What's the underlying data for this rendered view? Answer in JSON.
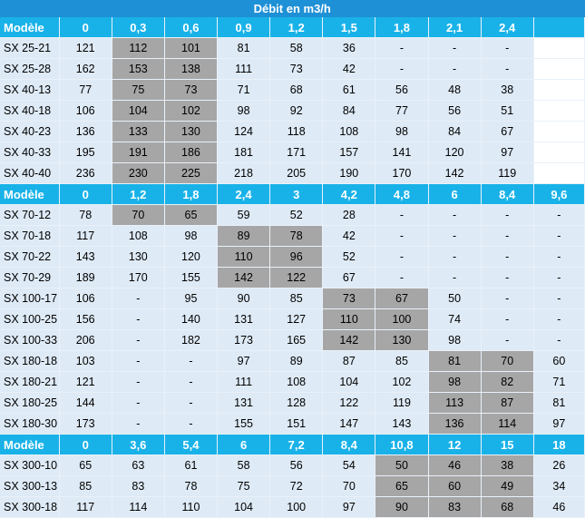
{
  "title": "Débit en m3/h",
  "sections": [
    {
      "header": [
        "Modèle",
        "0",
        "0,3",
        "0,6",
        "0,9",
        "1,2",
        "1,5",
        "1,8",
        "2,1",
        "2,4",
        ""
      ],
      "rows": [
        {
          "cells": [
            "SX 25-21",
            "121",
            "112",
            "101",
            "81",
            "58",
            "36",
            "-",
            "-",
            "-",
            ""
          ],
          "gray": [
            2,
            3
          ],
          "blank": [
            10
          ]
        },
        {
          "cells": [
            "SX 25-28",
            "162",
            "153",
            "138",
            "111",
            "73",
            "42",
            "-",
            "-",
            "-",
            ""
          ],
          "gray": [
            2,
            3
          ],
          "blank": [
            10
          ]
        },
        {
          "cells": [
            "SX 40-13",
            "77",
            "75",
            "73",
            "71",
            "68",
            "61",
            "56",
            "48",
            "38",
            ""
          ],
          "gray": [
            2,
            3
          ],
          "blank": [
            10
          ]
        },
        {
          "cells": [
            "SX 40-18",
            "106",
            "104",
            "102",
            "98",
            "92",
            "84",
            "77",
            "56",
            "51",
            ""
          ],
          "gray": [
            2,
            3
          ],
          "blank": [
            10
          ]
        },
        {
          "cells": [
            "SX 40-23",
            "136",
            "133",
            "130",
            "124",
            "118",
            "108",
            "98",
            "84",
            "67",
            ""
          ],
          "gray": [
            2,
            3
          ],
          "blank": [
            10
          ]
        },
        {
          "cells": [
            "SX 40-33",
            "195",
            "191",
            "186",
            "181",
            "171",
            "157",
            "141",
            "120",
            "97",
            ""
          ],
          "gray": [
            2,
            3
          ],
          "blank": [
            10
          ]
        },
        {
          "cells": [
            "SX 40-40",
            "236",
            "230",
            "225",
            "218",
            "205",
            "190",
            "170",
            "142",
            "119",
            ""
          ],
          "gray": [
            2,
            3
          ],
          "blank": [
            10
          ]
        }
      ]
    },
    {
      "header": [
        "Modèle",
        "0",
        "1,2",
        "1,8",
        "2,4",
        "3",
        "4,2",
        "4,8",
        "6",
        "8,4",
        "9,6"
      ],
      "rows": [
        {
          "cells": [
            "SX 70-12",
            "78",
            "70",
            "65",
            "59",
            "52",
            "28",
            "-",
            "-",
            "-",
            "-"
          ],
          "gray": [
            2,
            3
          ]
        },
        {
          "cells": [
            "SX 70-18",
            "117",
            "108",
            "98",
            "89",
            "78",
            "42",
            "-",
            "-",
            "-",
            "-"
          ],
          "gray": [
            4,
            5
          ]
        },
        {
          "cells": [
            "SX 70-22",
            "143",
            "130",
            "120",
            "110",
            "96",
            "52",
            "-",
            "-",
            "-",
            "-"
          ],
          "gray": [
            4,
            5
          ]
        },
        {
          "cells": [
            "SX 70-29",
            "189",
            "170",
            "155",
            "142",
            "122",
            "67",
            "-",
            "-",
            "-",
            "-"
          ],
          "gray": [
            4,
            5
          ]
        },
        {
          "cells": [
            "SX 100-17",
            "106",
            "-",
            "95",
            "90",
            "85",
            "73",
            "67",
            "50",
            "-",
            "-"
          ],
          "gray": [
            6,
            7
          ]
        },
        {
          "cells": [
            "SX 100-25",
            "156",
            "-",
            "140",
            "131",
            "127",
            "110",
            "100",
            "74",
            "-",
            "-"
          ],
          "gray": [
            6,
            7
          ]
        },
        {
          "cells": [
            "SX 100-33",
            "206",
            "-",
            "182",
            "173",
            "165",
            "142",
            "130",
            "98",
            "-",
            "-"
          ],
          "gray": [
            6,
            7
          ]
        },
        {
          "cells": [
            "SX 180-18",
            "103",
            "-",
            "-",
            "97",
            "89",
            "87",
            "85",
            "81",
            "70",
            "60"
          ],
          "gray": [
            8,
            9
          ]
        },
        {
          "cells": [
            "SX 180-21",
            "121",
            "-",
            "-",
            "111",
            "108",
            "104",
            "102",
            "98",
            "82",
            "71"
          ],
          "gray": [
            8,
            9
          ]
        },
        {
          "cells": [
            "SX 180-25",
            "144",
            "-",
            "-",
            "131",
            "128",
            "122",
            "119",
            "113",
            "87",
            "81"
          ],
          "gray": [
            8,
            9
          ]
        },
        {
          "cells": [
            "SX 180-30",
            "173",
            "-",
            "-",
            "155",
            "151",
            "147",
            "143",
            "136",
            "114",
            "97"
          ],
          "gray": [
            8,
            9
          ]
        }
      ]
    },
    {
      "header": [
        "Modèle",
        "0",
        "3,6",
        "5,4",
        "6",
        "7,2",
        "8,4",
        "10,8",
        "12",
        "15",
        "18"
      ],
      "rows": [
        {
          "cells": [
            "SX 300-10",
            "65",
            "63",
            "61",
            "58",
            "56",
            "54",
            "50",
            "46",
            "38",
            "26"
          ],
          "gray": [
            7,
            8,
            9
          ]
        },
        {
          "cells": [
            "SX 300-13",
            "85",
            "83",
            "78",
            "75",
            "72",
            "70",
            "65",
            "60",
            "49",
            "34"
          ],
          "gray": [
            7,
            8,
            9
          ]
        },
        {
          "cells": [
            "SX 300-18",
            "117",
            "114",
            "110",
            "104",
            "100",
            "97",
            "90",
            "83",
            "68",
            "46"
          ],
          "gray": [
            7,
            8,
            9
          ]
        }
      ]
    }
  ]
}
